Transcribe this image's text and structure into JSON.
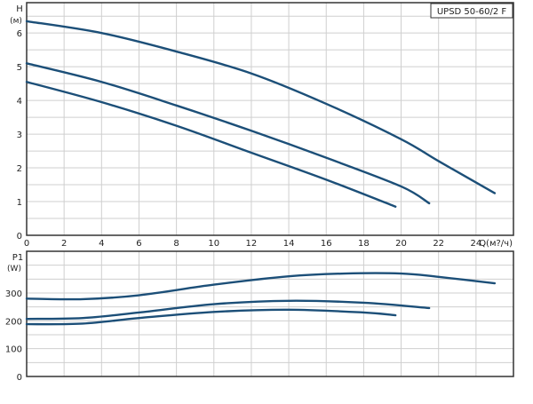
{
  "chart_data": [
    {
      "type": "line",
      "title": "UPSD 50-60/2 F",
      "ylabel": "H",
      "yunit": "(м)",
      "xlabel": "Q(м?/ч)",
      "xlim": [
        0,
        26
      ],
      "ylim": [
        0,
        6.9
      ],
      "xticks": [
        0,
        2,
        4,
        6,
        8,
        10,
        12,
        14,
        16,
        18,
        20,
        22,
        24
      ],
      "yticks": [
        0,
        1,
        2,
        3,
        4,
        5,
        6
      ],
      "grid": true,
      "series": [
        {
          "x": [
            0,
            4,
            8,
            12,
            16,
            20,
            22,
            25
          ],
          "y": [
            6.35,
            6.0,
            5.45,
            4.8,
            3.9,
            2.85,
            2.2,
            1.25
          ]
        },
        {
          "x": [
            0,
            4,
            8,
            12,
            16,
            20,
            21.5
          ],
          "y": [
            5.1,
            4.55,
            3.85,
            3.1,
            2.3,
            1.45,
            0.95
          ]
        },
        {
          "x": [
            0,
            4,
            8,
            12,
            16,
            19.7
          ],
          "y": [
            4.55,
            3.95,
            3.25,
            2.45,
            1.65,
            0.85
          ]
        }
      ]
    },
    {
      "type": "line",
      "ylabel": "P1",
      "yunit": "(W)",
      "xlim": [
        0,
        26
      ],
      "ylim": [
        0,
        450
      ],
      "yticks": [
        0,
        100,
        200,
        300
      ],
      "grid": true,
      "series": [
        {
          "x": [
            0,
            3,
            6,
            10,
            14,
            17,
            20,
            22,
            25
          ],
          "y": [
            280,
            278,
            292,
            330,
            360,
            370,
            370,
            358,
            335
          ]
        },
        {
          "x": [
            0,
            3,
            6,
            10,
            14,
            18,
            21.5
          ],
          "y": [
            207,
            210,
            230,
            260,
            272,
            265,
            246
          ]
        },
        {
          "x": [
            0,
            3,
            6,
            10,
            14,
            18,
            19.7
          ],
          "y": [
            188,
            190,
            210,
            232,
            240,
            230,
            220
          ]
        }
      ]
    }
  ],
  "colors": {
    "curve": "#1c4f78",
    "grid": "#cfcfcf",
    "frame": "#333333"
  }
}
